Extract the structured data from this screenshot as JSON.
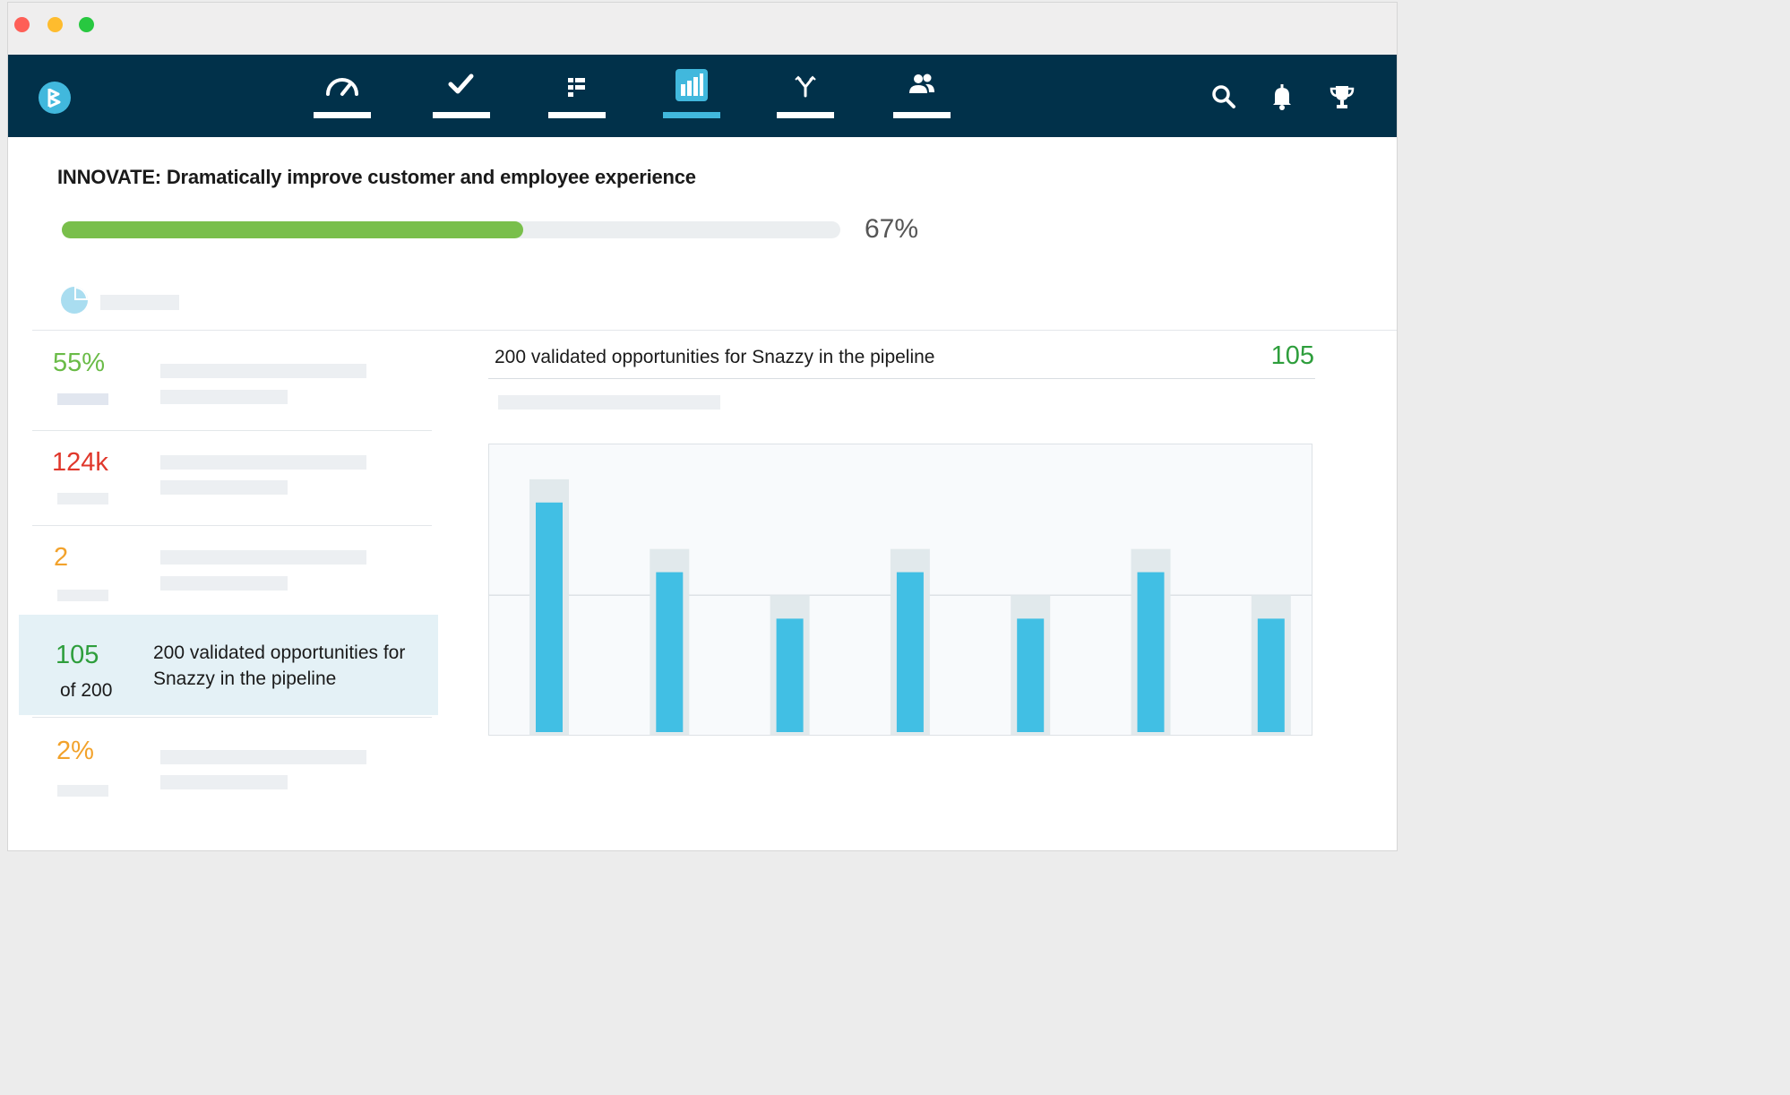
{
  "window": {
    "traffic_lights": {
      "close": "#fe5f57",
      "minimize": "#febc2e",
      "zoom": "#28c840"
    }
  },
  "nav": {
    "background": "#01314a",
    "accent": "#41b8dd",
    "items": [
      {
        "id": "dashboard",
        "icon": "speedometer-icon"
      },
      {
        "id": "tasks",
        "icon": "checkmark-icon"
      },
      {
        "id": "list",
        "icon": "list-grid-icon"
      },
      {
        "id": "reports",
        "icon": "bar-chart-icon",
        "active": true
      },
      {
        "id": "alignment",
        "icon": "branch-merge-icon"
      },
      {
        "id": "people",
        "icon": "people-icon"
      }
    ],
    "right_icons": [
      "search-icon",
      "bell-icon",
      "trophy-icon"
    ]
  },
  "goal": {
    "title": "INNOVATE: Dramatically improve customer and employee experience",
    "progress_percent": 67,
    "progress_label": "67%",
    "progress_color": "#79bf4b"
  },
  "metrics": [
    {
      "value": "55%",
      "color": "#6abb47"
    },
    {
      "value": "124k",
      "color": "#e0372b"
    },
    {
      "value": "2",
      "color": "#f2a22b"
    },
    {
      "value": "105",
      "of": "of 200",
      "description": "200 validated opportunities for Snazzy in the pipeline",
      "color": "#2e9e3c",
      "selected": true
    },
    {
      "value": "2%",
      "color": "#f2a22b"
    }
  ],
  "detail": {
    "title": "200 validated opportunities for Snazzy in the pipeline",
    "count": "105",
    "count_color": "#2e9e3c"
  },
  "chart_data": {
    "type": "bar",
    "values": [
      100,
      70,
      50,
      70,
      50,
      70,
      50
    ],
    "targets": [
      110,
      80,
      60,
      80,
      60,
      80,
      60
    ],
    "ylim": [
      0,
      125
    ],
    "grid": true,
    "bar_color": "#41bfe4",
    "target_color": "#e1e9ec"
  }
}
